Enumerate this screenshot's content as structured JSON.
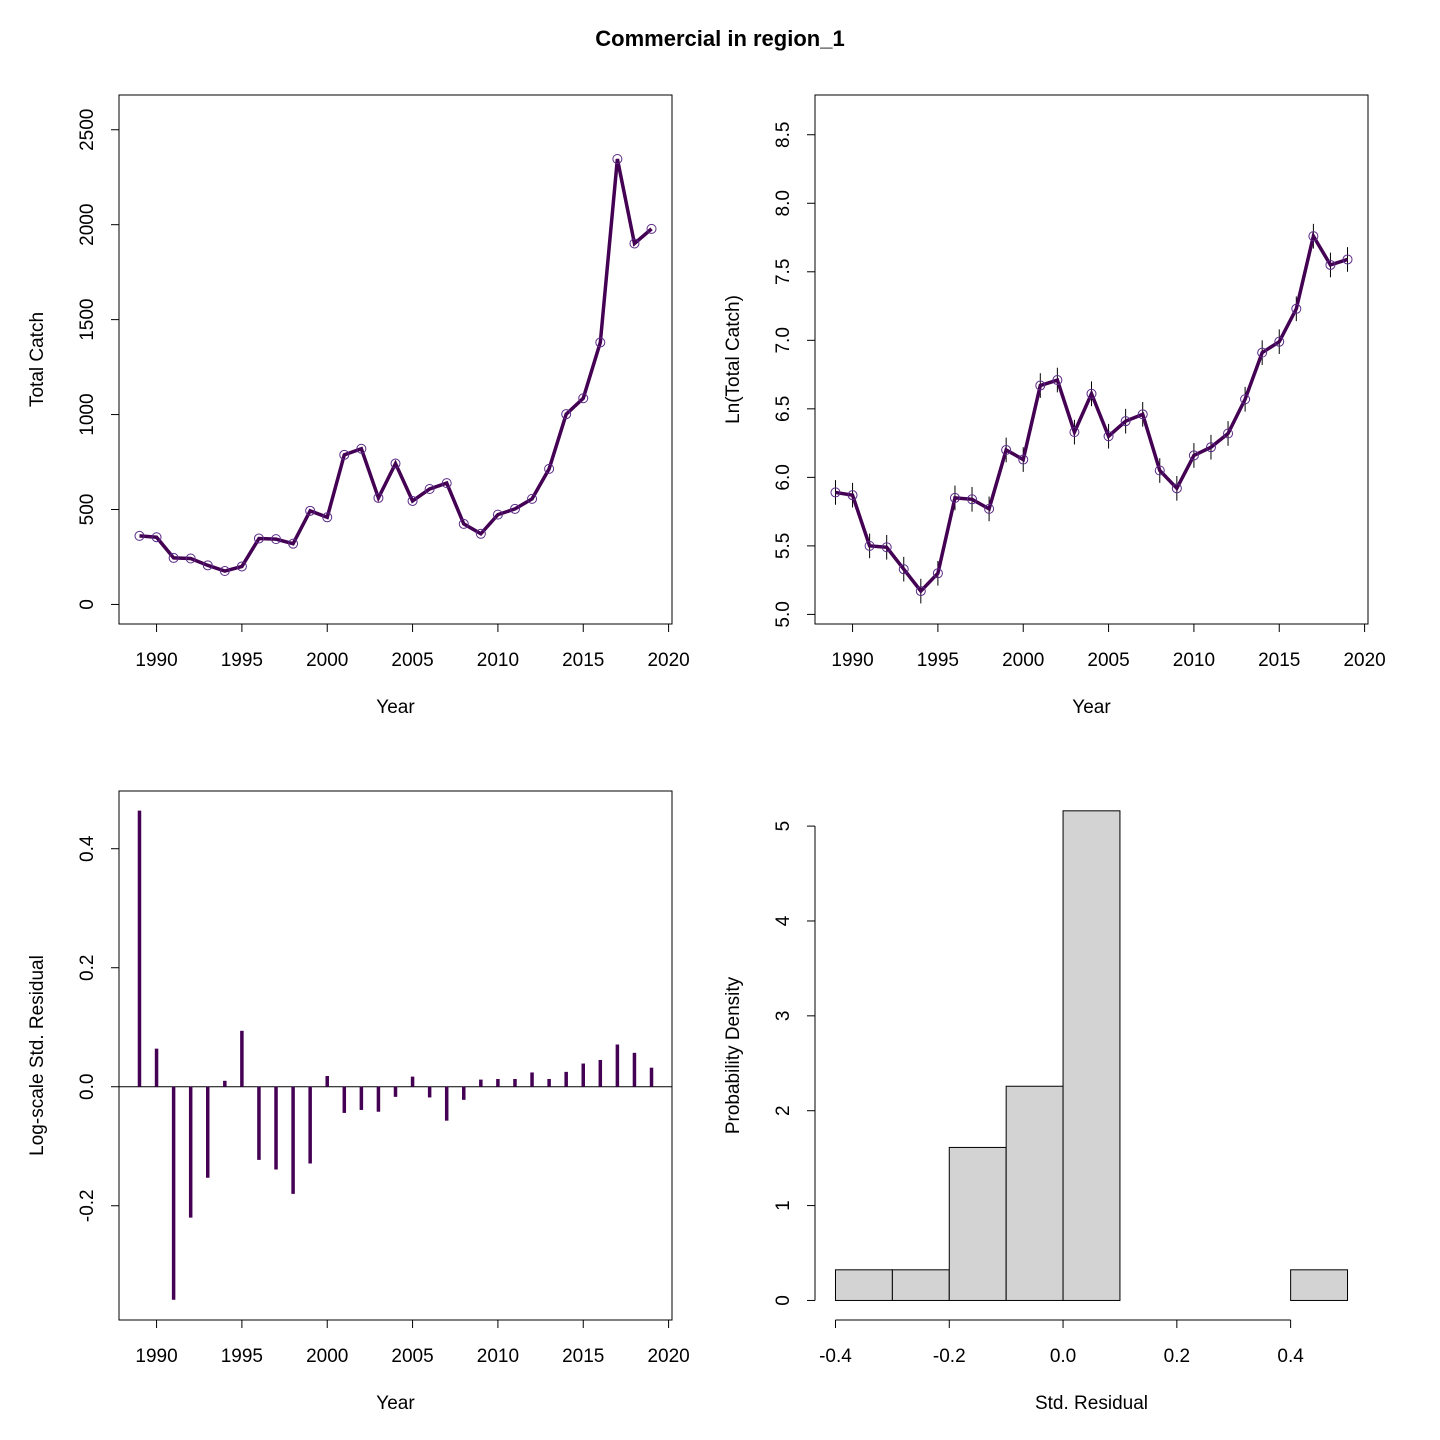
{
  "title": "Commercial in region_1",
  "chart_data": [
    {
      "type": "line",
      "xlabel": "Year",
      "ylabel": "Total Catch",
      "color": "#440154",
      "box": true,
      "x": [
        1989,
        1990,
        1991,
        1992,
        1993,
        1994,
        1995,
        1996,
        1997,
        1998,
        1999,
        2000,
        2001,
        2002,
        2003,
        2004,
        2005,
        2006,
        2007,
        2008,
        2009,
        2010,
        2011,
        2012,
        2013,
        2014,
        2015,
        2016,
        2017,
        2018,
        2019
      ],
      "values": [
        361,
        354,
        245,
        242,
        206,
        176,
        200,
        347,
        344,
        320,
        493,
        459,
        788,
        820,
        561,
        742,
        545,
        608,
        639,
        424,
        372,
        473,
        503,
        556,
        714,
        1002,
        1086,
        1380,
        2346,
        1901,
        1978
      ],
      "xlim": [
        1987.8,
        2020.2
      ],
      "ylim": [
        -103,
        2683
      ],
      "xticks": [
        1990,
        1995,
        2000,
        2005,
        2010,
        2015,
        2020
      ],
      "yticks": [
        0,
        500,
        1000,
        1500,
        2000,
        2500
      ]
    },
    {
      "type": "line",
      "xlabel": "Year",
      "ylabel": "Ln(Total Catch)",
      "color": "#440154",
      "box": true,
      "x": [
        1989,
        1990,
        1991,
        1992,
        1993,
        1994,
        1995,
        1996,
        1997,
        1998,
        1999,
        2000,
        2001,
        2002,
        2003,
        2004,
        2005,
        2006,
        2007,
        2008,
        2009,
        2010,
        2011,
        2012,
        2013,
        2014,
        2015,
        2016,
        2017,
        2018,
        2019
      ],
      "values": [
        5.89,
        5.87,
        5.5,
        5.49,
        5.33,
        5.17,
        5.3,
        5.85,
        5.84,
        5.77,
        6.2,
        6.13,
        6.67,
        6.71,
        6.33,
        6.61,
        6.3,
        6.41,
        6.46,
        6.05,
        5.92,
        6.16,
        6.22,
        6.32,
        6.57,
        6.91,
        6.99,
        7.23,
        7.76,
        7.55,
        7.59
      ],
      "errors": [
        0.09,
        0.09,
        0.09,
        0.09,
        0.09,
        0.09,
        0.09,
        0.09,
        0.09,
        0.09,
        0.09,
        0.09,
        0.09,
        0.09,
        0.09,
        0.09,
        0.09,
        0.09,
        0.09,
        0.09,
        0.09,
        0.09,
        0.09,
        0.09,
        0.09,
        0.09,
        0.09,
        0.09,
        0.09,
        0.09,
        0.09
      ],
      "xlim": [
        1987.8,
        2020.2
      ],
      "ylim": [
        4.93,
        8.79
      ],
      "xticks": [
        1990,
        1995,
        2000,
        2005,
        2010,
        2015,
        2020
      ],
      "yticks": [
        {
          "value": 5,
          "label": "5.0"
        },
        5.5,
        {
          "value": 6,
          "label": "6.0"
        },
        6.5,
        {
          "value": 7,
          "label": "7.0"
        },
        7.5,
        {
          "value": 8,
          "label": "8.0"
        },
        8.5
      ]
    },
    {
      "type": "bar",
      "xlabel": "Year",
      "ylabel": "Log-scale Std. Residual",
      "color": "#440154",
      "box": true,
      "x": [
        1989,
        1990,
        1991,
        1992,
        1993,
        1994,
        1995,
        1996,
        1997,
        1998,
        1999,
        2000,
        2001,
        2002,
        2003,
        2004,
        2005,
        2006,
        2007,
        2008,
        2009,
        2010,
        2011,
        2012,
        2013,
        2014,
        2015,
        2016,
        2017,
        2018,
        2019
      ],
      "values": [
        0.464,
        0.064,
        -0.358,
        -0.22,
        -0.153,
        0.01,
        0.094,
        -0.123,
        -0.139,
        -0.18,
        -0.129,
        0.018,
        -0.044,
        -0.039,
        -0.042,
        -0.017,
        0.017,
        -0.018,
        -0.057,
        -0.022,
        0.012,
        0.013,
        0.013,
        0.024,
        0.013,
        0.025,
        0.039,
        0.045,
        0.071,
        0.057,
        0.032
      ],
      "xlim": [
        1987.8,
        2020.2
      ],
      "ylim": [
        -0.392,
        0.497
      ],
      "xticks": [
        1990,
        1995,
        2000,
        2005,
        2010,
        2015,
        2020
      ],
      "yticks": [
        -0.2,
        {
          "value": 0,
          "label": "0.0"
        },
        0.2,
        0.4
      ]
    },
    {
      "type": "histogram",
      "xlabel": "Std. Residual",
      "ylabel": "Probability Density",
      "color": "#d3d3d3",
      "box": false,
      "bins": [
        -0.4,
        -0.3,
        -0.2,
        -0.1,
        0,
        0.1,
        0.2,
        0.3,
        0.4,
        0.5
      ],
      "values": [
        0.323,
        0.323,
        1.613,
        2.258,
        5.161,
        0,
        0,
        0,
        0.323
      ],
      "xlim": [
        -0.436,
        0.536
      ],
      "ylim": [
        -0.206,
        5.37
      ],
      "xticks": [
        -0.4,
        -0.2,
        {
          "value": 0,
          "label": "0.0"
        },
        0.2,
        0.4
      ],
      "yticks": [
        0,
        1,
        2,
        3,
        4,
        5
      ]
    }
  ]
}
